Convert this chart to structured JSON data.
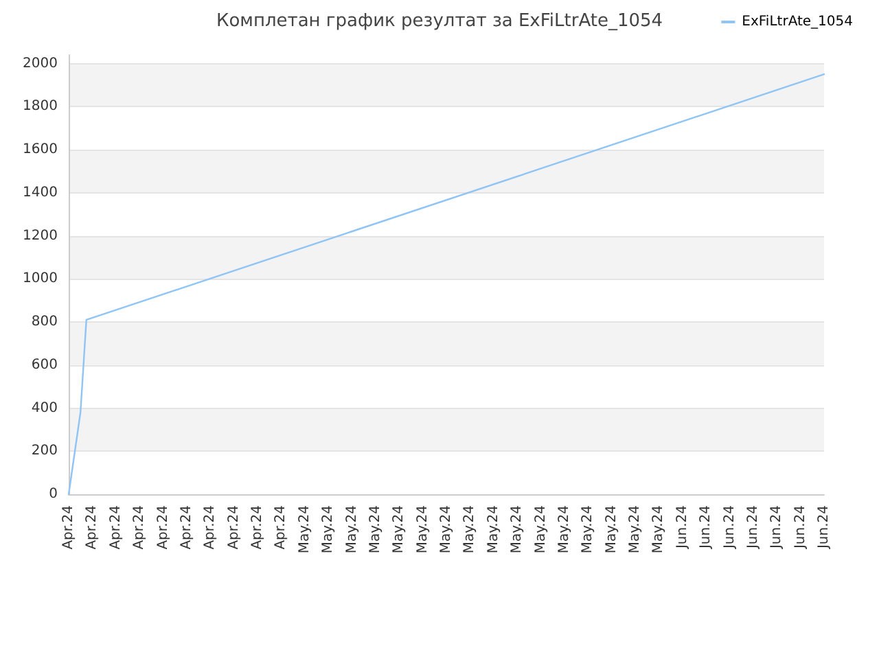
{
  "chart_data": {
    "type": "line",
    "title": "Комплетан график резултат за ExFiLtrAte_1054",
    "categories": [
      "Apr.24",
      null,
      null,
      null,
      "Apr.24",
      null,
      null,
      null,
      "Apr.24",
      null,
      null,
      null,
      "Apr.24",
      null,
      null,
      null,
      "Apr.24",
      null,
      null,
      null,
      "Apr.24",
      null,
      null,
      null,
      "Apr.24",
      null,
      null,
      null,
      "Apr.24",
      null,
      null,
      null,
      "Apr.24",
      null,
      null,
      null,
      "Apr.24",
      null,
      null,
      null,
      "May.24",
      null,
      null,
      null,
      "May.24",
      null,
      null,
      null,
      "May.24",
      null,
      null,
      null,
      "May.24",
      null,
      null,
      null,
      "May.24",
      null,
      null,
      null,
      "May.24",
      null,
      null,
      null,
      "May.24",
      null,
      null,
      null,
      "May.24",
      null,
      null,
      null,
      "May.24",
      null,
      null,
      null,
      "May.24",
      null,
      null,
      null,
      "May.24",
      null,
      null,
      null,
      "May.24",
      null,
      null,
      null,
      "May.24",
      null,
      null,
      null,
      "May.24",
      null,
      null,
      null,
      "May.24",
      null,
      null,
      null,
      "May.24",
      null,
      null,
      null,
      "Jun.24",
      null,
      null,
      null,
      "Jun.24",
      null,
      null,
      null,
      "Jun.24",
      null,
      null,
      null,
      "Jun.24",
      null,
      null,
      null,
      "Jun.24",
      null,
      null,
      null,
      "Jun.24",
      null,
      null,
      null,
      "Jun.24"
    ],
    "series": [
      {
        "name": "ExFiLtrAte_1054",
        "color": "#90c4f5",
        "values": [
          0,
          null,
          380,
          810,
          null,
          null,
          null,
          null,
          null,
          null,
          null,
          null,
          null,
          null,
          null,
          null,
          null,
          null,
          null,
          null,
          null,
          null,
          null,
          null,
          null,
          null,
          null,
          null,
          null,
          null,
          null,
          null,
          null,
          null,
          null,
          null,
          null,
          null,
          null,
          null,
          null,
          null,
          null,
          null,
          null,
          null,
          null,
          null,
          null,
          null,
          null,
          null,
          null,
          null,
          null,
          null,
          null,
          null,
          null,
          null,
          null,
          null,
          null,
          null,
          null,
          null,
          null,
          null,
          null,
          null,
          null,
          null,
          null,
          null,
          null,
          null,
          null,
          null,
          null,
          null,
          null,
          null,
          null,
          null,
          null,
          null,
          null,
          null,
          null,
          null,
          null,
          null,
          null,
          null,
          null,
          null,
          null,
          null,
          null,
          null,
          null,
          null,
          null,
          null,
          null,
          null,
          null,
          null,
          null,
          null,
          null,
          null,
          null,
          null,
          null,
          null,
          null,
          null,
          null,
          null,
          null,
          null,
          null,
          null,
          null,
          null,
          null,
          null,
          1950
        ]
      }
    ],
    "ylim": [
      0,
      2040
    ],
    "yticks": [
      0,
      200,
      400,
      600,
      800,
      1000,
      1200,
      1400,
      1600,
      1800,
      2000
    ],
    "grid": "y",
    "legend": "top right",
    "marker": "none",
    "line_style": "solid"
  }
}
